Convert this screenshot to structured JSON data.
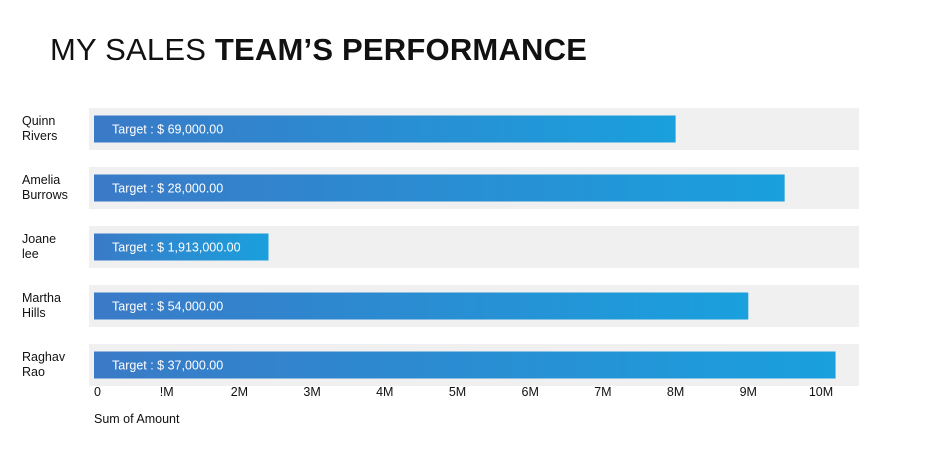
{
  "title": {
    "light": "MY SALES ",
    "bold": "TEAM’S PERFORMANCE"
  },
  "colors": {
    "track": "#f0f0f0",
    "bar_start": "#3a7ac7",
    "bar_end": "#1aa0dd",
    "text": "#111111"
  },
  "chart_data": {
    "type": "bar",
    "orientation": "horizontal",
    "categories": [
      [
        "Quinn",
        "Rivers"
      ],
      [
        "Amelia",
        "Burrows"
      ],
      [
        "Joane",
        "lee"
      ],
      [
        "Martha",
        "Hills"
      ],
      [
        "Raghav",
        "Rao"
      ]
    ],
    "values": [
      8000000,
      9500000,
      2400000,
      9000000,
      10200000
    ],
    "bar_labels": [
      "Target : $ 69,000.00",
      "Target : $ 28,000.00",
      "Target : $ 1,913,000.00",
      "Target : $ 54,000.00",
      "Target : $ 37,000.00"
    ],
    "xlim": [
      0,
      10400000
    ],
    "xticks": [
      0,
      1000000,
      2000000,
      3000000,
      4000000,
      5000000,
      6000000,
      7000000,
      8000000,
      9000000,
      10000000
    ],
    "xtick_labels": [
      "0",
      "!M",
      "2M",
      "3M",
      "4M",
      "5M",
      "6M",
      "7M",
      "8M",
      "9M",
      "10M"
    ],
    "xlabel": "Sum of Amount",
    "ylabel": "",
    "grid": false
  }
}
